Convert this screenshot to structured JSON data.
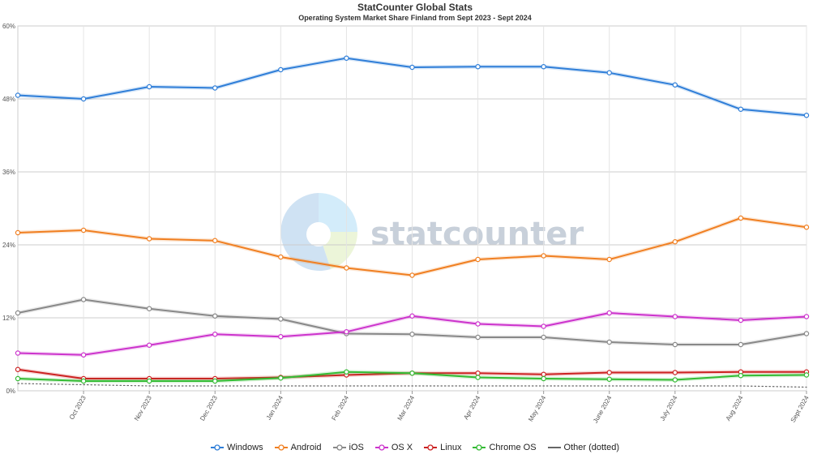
{
  "header": {
    "title": "StatCounter Global Stats",
    "subtitle": "Operating System Market Share Finland from Sept 2023 - Sept 2024"
  },
  "watermark": {
    "text": "statcounter"
  },
  "chart_data": {
    "type": "line",
    "title": "StatCounter Global Stats",
    "subtitle": "Operating System Market Share Finland from Sept 2023 - Sept 2024",
    "xlabel": "",
    "ylabel": "",
    "x": [
      "Sept 2023",
      "Oct 2023",
      "Nov 2023",
      "Dec 2023",
      "Jan 2024",
      "Feb 2024",
      "Mar 2024",
      "Apr 2024",
      "May 2024",
      "June 2024",
      "July 2024",
      "Aug 2024",
      "Sept 2024"
    ],
    "x_tick_labels": [
      "Oct 2023",
      "Nov 2023",
      "Dec 2023",
      "Jan 2024",
      "Feb 2024",
      "Mar 2024",
      "Apr 2024",
      "May 2024",
      "June 2024",
      "July 2024",
      "Aug 2024",
      "Sept 2024"
    ],
    "ylim": [
      0,
      60
    ],
    "y_ticks": [
      0,
      12,
      24,
      36,
      48,
      60
    ],
    "y_tick_labels": [
      "0%",
      "12%",
      "24%",
      "36%",
      "48%",
      "60%"
    ],
    "grid": true,
    "legend_position": "bottom",
    "series": [
      {
        "name": "Windows",
        "color": "#2f7ed8",
        "dotted": false,
        "values": [
          48.6,
          48.0,
          50.0,
          49.8,
          52.8,
          54.7,
          53.2,
          53.3,
          53.3,
          52.3,
          50.3,
          46.3,
          45.3
        ]
      },
      {
        "name": "Android",
        "color": "#f07f21",
        "dotted": false,
        "values": [
          26.0,
          26.4,
          25.0,
          24.7,
          22.0,
          20.2,
          19.0,
          21.6,
          22.2,
          21.6,
          24.5,
          28.4,
          26.9
        ]
      },
      {
        "name": "iOS",
        "color": "#888888",
        "dotted": false,
        "values": [
          12.8,
          15.0,
          13.5,
          12.3,
          11.8,
          9.4,
          9.3,
          8.8,
          8.8,
          8.0,
          7.6,
          7.6,
          9.4
        ]
      },
      {
        "name": "OS X",
        "color": "#cc33cc",
        "dotted": false,
        "values": [
          6.2,
          5.9,
          7.5,
          9.3,
          8.9,
          9.7,
          12.3,
          11.0,
          10.6,
          12.8,
          12.2,
          11.6,
          12.2
        ]
      },
      {
        "name": "Linux",
        "color": "#cc2222",
        "dotted": false,
        "values": [
          3.5,
          2.0,
          2.0,
          2.0,
          2.2,
          2.6,
          2.9,
          2.9,
          2.7,
          3.0,
          3.0,
          3.1,
          3.1
        ]
      },
      {
        "name": "Chrome OS",
        "color": "#33bb33",
        "dotted": false,
        "values": [
          2.0,
          1.6,
          1.6,
          1.6,
          2.1,
          3.1,
          2.9,
          2.2,
          2.0,
          1.9,
          1.8,
          2.5,
          2.6
        ]
      },
      {
        "name": "Other (dotted)",
        "color": "#666666",
        "dotted": true,
        "values": [
          1.2,
          1.0,
          0.8,
          0.8,
          0.8,
          0.8,
          0.8,
          0.8,
          0.8,
          0.8,
          0.8,
          0.8,
          0.6
        ]
      }
    ]
  }
}
